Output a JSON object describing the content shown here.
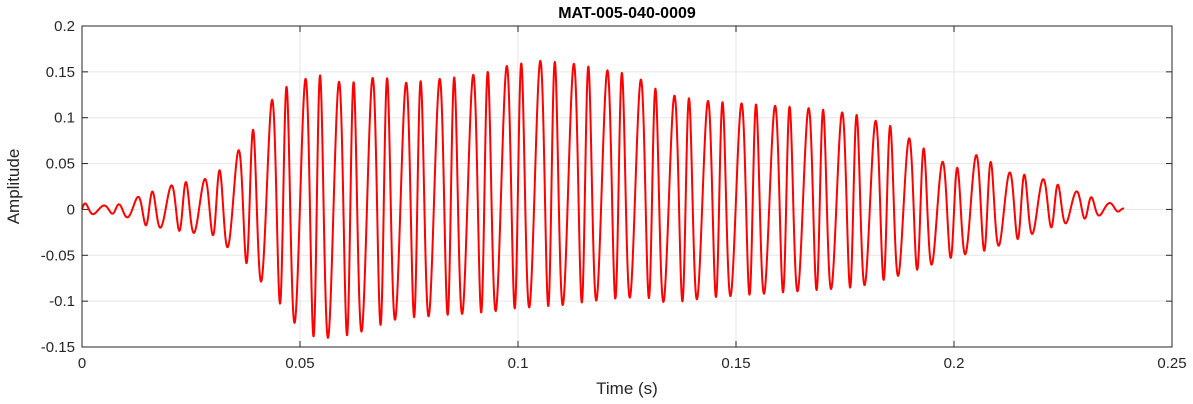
{
  "chart_data": {
    "type": "line",
    "title": "MAT-005-040-0009",
    "xlabel": "Time (s)",
    "ylabel": "Amplitude",
    "xlim": [
      0,
      0.25
    ],
    "ylim": [
      -0.15,
      0.2
    ],
    "xticks": [
      0,
      0.05,
      0.1,
      0.15,
      0.2,
      0.25
    ],
    "xtick_labels": [
      "0",
      "0.05",
      "0.1",
      "0.15",
      "0.2",
      "0.25"
    ],
    "yticks": [
      -0.15,
      -0.1,
      -0.05,
      0,
      0.05,
      0.1,
      0.15,
      0.2
    ],
    "ytick_labels": [
      "-0.15",
      "-0.1",
      "-0.05",
      "0",
      "0.05",
      "0.1",
      "0.15",
      "0.2"
    ],
    "grid": true,
    "legend": "none",
    "line_color": "#ff0000",
    "grid_color": "#e6e6e6",
    "series": [
      {
        "name": "",
        "x": [
          0,
          0.003,
          0.006,
          0.009,
          0.012,
          0.015,
          0.018,
          0.021,
          0.024,
          0.027,
          0.03,
          0.033,
          0.036,
          0.039,
          0.042,
          0.045,
          0.048,
          0.051,
          0.054,
          0.057,
          0.06,
          0.063,
          0.066,
          0.069,
          0.072,
          0.075,
          0.078,
          0.081,
          0.084,
          0.087,
          0.09,
          0.093,
          0.096,
          0.099,
          0.102,
          0.105,
          0.108,
          0.111,
          0.114,
          0.117,
          0.12,
          0.123,
          0.126,
          0.129,
          0.132,
          0.135,
          0.138,
          0.141,
          0.144,
          0.147,
          0.15,
          0.153,
          0.156,
          0.159,
          0.162,
          0.165,
          0.168,
          0.171,
          0.174,
          0.177,
          0.18,
          0.183,
          0.186,
          0.189,
          0.192,
          0.195,
          0.198,
          0.201,
          0.204,
          0.207,
          0.21,
          0.213,
          0.216,
          0.219,
          0.222,
          0.225,
          0.228,
          0.231,
          0.234,
          0.237,
          0.239
        ],
        "envelope_max": [
          0.007,
          0.005,
          0.004,
          0.006,
          0.012,
          0.018,
          0.022,
          0.027,
          0.03,
          0.032,
          0.035,
          0.05,
          0.065,
          0.085,
          0.11,
          0.128,
          0.137,
          0.142,
          0.146,
          0.147,
          0.135,
          0.14,
          0.143,
          0.145,
          0.139,
          0.138,
          0.14,
          0.142,
          0.143,
          0.145,
          0.147,
          0.15,
          0.155,
          0.158,
          0.16,
          0.162,
          0.161,
          0.16,
          0.158,
          0.155,
          0.152,
          0.15,
          0.146,
          0.14,
          0.13,
          0.125,
          0.122,
          0.12,
          0.118,
          0.117,
          0.116,
          0.115,
          0.114,
          0.113,
          0.112,
          0.111,
          0.11,
          0.108,
          0.106,
          0.104,
          0.1,
          0.095,
          0.09,
          0.08,
          0.07,
          0.06,
          0.05,
          0.045,
          0.06,
          0.058,
          0.045,
          0.04,
          0.038,
          0.036,
          0.03,
          0.025,
          0.02,
          0.014,
          0.01,
          0.005,
          0.001
        ],
        "envelope_min": [
          -0.006,
          -0.005,
          -0.004,
          -0.006,
          -0.012,
          -0.018,
          -0.02,
          -0.022,
          -0.025,
          -0.026,
          -0.028,
          -0.04,
          -0.05,
          -0.065,
          -0.085,
          -0.1,
          -0.12,
          -0.135,
          -0.14,
          -0.14,
          -0.138,
          -0.135,
          -0.13,
          -0.125,
          -0.12,
          -0.118,
          -0.117,
          -0.116,
          -0.115,
          -0.114,
          -0.113,
          -0.112,
          -0.11,
          -0.108,
          -0.107,
          -0.106,
          -0.105,
          -0.104,
          -0.102,
          -0.1,
          -0.098,
          -0.097,
          -0.096,
          -0.095,
          -0.1,
          -0.102,
          -0.1,
          -0.098,
          -0.096,
          -0.095,
          -0.094,
          -0.093,
          -0.092,
          -0.091,
          -0.09,
          -0.089,
          -0.088,
          -0.087,
          -0.086,
          -0.085,
          -0.082,
          -0.078,
          -0.074,
          -0.07,
          -0.065,
          -0.06,
          -0.055,
          -0.05,
          -0.048,
          -0.045,
          -0.04,
          -0.035,
          -0.03,
          -0.025,
          -0.02,
          -0.016,
          -0.012,
          -0.009,
          -0.006,
          -0.003,
          -0.001
        ],
        "oscillation_frequency_hz": 260
      }
    ]
  }
}
